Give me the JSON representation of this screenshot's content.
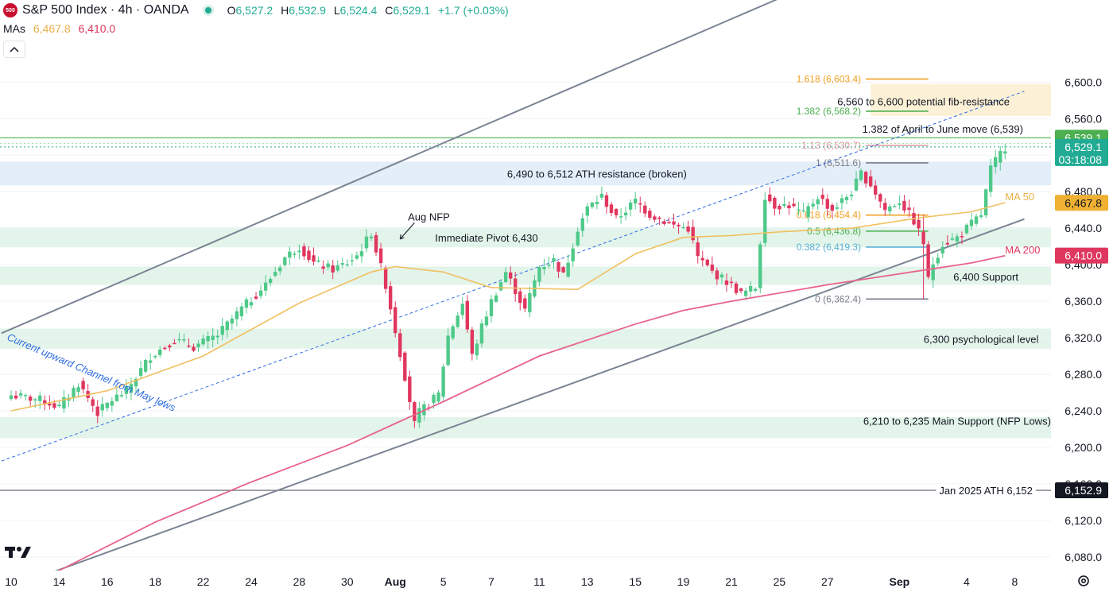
{
  "header": {
    "badge": "500",
    "title": "S&P 500 Index · 4h · OANDA",
    "o_label": "O",
    "o_value": "6,527.2",
    "h_label": "H",
    "h_value": "6,532.9",
    "l_label": "L",
    "l_value": "6,524.4",
    "c_label": "C",
    "c_value": "6,529.1",
    "change": "+1.7 (+0.03%)"
  },
  "mas": {
    "label": "MAs",
    "ma50_value": "6,467.8",
    "ma200_value": "6,410.0"
  },
  "colors": {
    "up": "#4fc98a",
    "down": "#e0375f",
    "ma50": "#f0c060",
    "ma200": "#e8638c",
    "channel": "#7b8494",
    "mid": "#2f6ee0",
    "zone_green": "#e3f4ea",
    "zone_blue": "#e4eef8",
    "zone_fib": "#fcf1d6"
  },
  "chart_data": {
    "type": "candlestick",
    "title": "S&P 500 Index · 4h · OANDA",
    "ylim": [
      6065,
      6690
    ],
    "y_ticks": [
      "6,600.0",
      "6,560.0",
      "6,520.0",
      "6,480.0",
      "6,440.0",
      "6,400.0",
      "6,360.0",
      "6,320.0",
      "6,280.0",
      "6,240.0",
      "6,200.0",
      "6,160.0",
      "6,120.0",
      "6,080.0"
    ],
    "y_tick_values": [
      6600,
      6560,
      6520,
      6480,
      6440,
      6400,
      6360,
      6320,
      6280,
      6240,
      6200,
      6160,
      6120,
      6080
    ],
    "x_ticks": [
      {
        "label": "10",
        "bar": 0
      },
      {
        "label": "14",
        "bar": 10
      },
      {
        "label": "16",
        "bar": 20
      },
      {
        "label": "18",
        "bar": 30
      },
      {
        "label": "22",
        "bar": 40
      },
      {
        "label": "24",
        "bar": 50
      },
      {
        "label": "28",
        "bar": 60
      },
      {
        "label": "30",
        "bar": 70
      },
      {
        "label": "Aug",
        "bar": 80,
        "bold": true
      },
      {
        "label": "5",
        "bar": 90
      },
      {
        "label": "7",
        "bar": 100
      },
      {
        "label": "11",
        "bar": 110
      },
      {
        "label": "13",
        "bar": 120
      },
      {
        "label": "15",
        "bar": 130
      },
      {
        "label": "19",
        "bar": 140
      },
      {
        "label": "21",
        "bar": 150
      },
      {
        "label": "25",
        "bar": 160
      },
      {
        "label": "27",
        "bar": 170
      },
      {
        "label": "Sep",
        "bar": 185,
        "bold": true
      },
      {
        "label": "4",
        "bar": 199
      },
      {
        "label": "8",
        "bar": 209
      }
    ],
    "close_anchors": [
      [
        0,
        6257
      ],
      [
        6,
        6252
      ],
      [
        10,
        6244
      ],
      [
        14,
        6270
      ],
      [
        18,
        6238
      ],
      [
        21,
        6252
      ],
      [
        24,
        6262
      ],
      [
        29,
        6300
      ],
      [
        34,
        6318
      ],
      [
        38,
        6310
      ],
      [
        43,
        6323
      ],
      [
        48,
        6352
      ],
      [
        53,
        6378
      ],
      [
        57,
        6408
      ],
      [
        60,
        6420
      ],
      [
        63,
        6402
      ],
      [
        67,
        6395
      ],
      [
        70,
        6402
      ],
      [
        72,
        6410
      ],
      [
        75,
        6435
      ],
      [
        78,
        6378
      ],
      [
        82,
        6278
      ],
      [
        84,
        6225
      ],
      [
        85,
        6238
      ],
      [
        89,
        6258
      ],
      [
        91,
        6322
      ],
      [
        94,
        6358
      ],
      [
        96,
        6300
      ],
      [
        98,
        6332
      ],
      [
        100,
        6360
      ],
      [
        103,
        6392
      ],
      [
        105,
        6372
      ],
      [
        107,
        6350
      ],
      [
        110,
        6398
      ],
      [
        113,
        6405
      ],
      [
        115,
        6388
      ],
      [
        118,
        6440
      ],
      [
        120,
        6462
      ],
      [
        123,
        6475
      ],
      [
        126,
        6450
      ],
      [
        130,
        6470
      ],
      [
        133,
        6455
      ],
      [
        138,
        6443
      ],
      [
        141,
        6440
      ],
      [
        143,
        6408
      ],
      [
        146,
        6392
      ],
      [
        150,
        6378
      ],
      [
        152,
        6368
      ],
      [
        155,
        6375
      ],
      [
        157,
        6476
      ],
      [
        159,
        6465
      ],
      [
        162,
        6465
      ],
      [
        165,
        6455
      ],
      [
        168,
        6475
      ],
      [
        171,
        6460
      ],
      [
        175,
        6480
      ],
      [
        177,
        6500
      ],
      [
        179,
        6488
      ],
      [
        182,
        6460
      ],
      [
        185,
        6470
      ],
      [
        188,
        6448
      ],
      [
        190,
        6424
      ],
      [
        191,
        6383
      ],
      [
        192,
        6402
      ],
      [
        194,
        6423
      ],
      [
        197,
        6430
      ],
      [
        200,
        6445
      ],
      [
        202,
        6455
      ],
      [
        204,
        6505
      ],
      [
        206,
        6522
      ],
      [
        207,
        6529
      ]
    ],
    "series": [
      {
        "name": "MA 50",
        "value": "6,467.8"
      },
      {
        "name": "MA 200",
        "value": "6,410.0"
      }
    ],
    "ma50_anchors": [
      [
        0,
        6240
      ],
      [
        20,
        6262
      ],
      [
        40,
        6300
      ],
      [
        60,
        6358
      ],
      [
        75,
        6392
      ],
      [
        80,
        6398
      ],
      [
        90,
        6392
      ],
      [
        100,
        6375
      ],
      [
        118,
        6373
      ],
      [
        130,
        6412
      ],
      [
        140,
        6430
      ],
      [
        150,
        6432
      ],
      [
        160,
        6436
      ],
      [
        175,
        6440
      ],
      [
        190,
        6452
      ],
      [
        200,
        6458
      ],
      [
        207,
        6468
      ]
    ],
    "ma200_anchors": [
      [
        10,
        6065
      ],
      [
        30,
        6118
      ],
      [
        50,
        6162
      ],
      [
        70,
        6202
      ],
      [
        80,
        6226
      ],
      [
        90,
        6250
      ],
      [
        110,
        6300
      ],
      [
        130,
        6335
      ],
      [
        140,
        6350
      ],
      [
        150,
        6360
      ],
      [
        170,
        6378
      ],
      [
        185,
        6390
      ],
      [
        200,
        6402
      ],
      [
        207,
        6410
      ]
    ],
    "price_labels": [
      {
        "text": "6,539.1",
        "value": 6539.1,
        "bg": "#4caf50",
        "fg": "#ffffff"
      },
      {
        "text": "6,529.1",
        "value": 6529.1,
        "bg": "#22ab94",
        "fg": "#ffffff",
        "sub": "03:18:08"
      },
      {
        "text": "6,467.8",
        "value": 6467.8,
        "bg": "#f0b132",
        "fg": "#131722"
      },
      {
        "text": "6,410.0",
        "value": 6410.0,
        "bg": "#e0375f",
        "fg": "#ffffff"
      },
      {
        "text": "6,152.9",
        "value": 6152.9,
        "bg": "#131722",
        "fg": "#ffffff"
      }
    ],
    "zones": [
      {
        "from": 6563,
        "to": 6598,
        "color": "#fcf1d6",
        "x0": "bar:179"
      },
      {
        "from": 6487,
        "to": 6513,
        "color": "#e4eef8"
      },
      {
        "from": 6419,
        "to": 6441,
        "color": "#e3f4ea"
      },
      {
        "from": 6378,
        "to": 6398,
        "color": "#e3f4ea"
      },
      {
        "from": 6308,
        "to": 6330,
        "color": "#e3f4ea"
      },
      {
        "from": 6210,
        "to": 6233,
        "color": "#e3f4ea"
      }
    ],
    "hlines": [
      {
        "value": 6539,
        "color": "#6bbf70",
        "style": "solid",
        "full": true
      },
      {
        "value": 6533,
        "color": "#9fd7a3",
        "style": "dotted",
        "full": true
      },
      {
        "value": 6529.1,
        "color": "#22ab94",
        "style": "dotted",
        "full": true
      },
      {
        "value": 6152.9,
        "color": "#787b86",
        "style": "solid",
        "full": true
      }
    ],
    "fib_levels": [
      {
        "label": "1.618 (6,603.4)",
        "value": 6603.4,
        "color": "#f0a020"
      },
      {
        "label": "1.382 (6,568.2)",
        "value": 6568.2,
        "color": "#4caf50"
      },
      {
        "label": "1.13 (6,530.7)",
        "value": 6530.7,
        "color": "#e09aa0"
      },
      {
        "label": "1 (6,511.6)",
        "value": 6511.6,
        "color": "#787b86"
      },
      {
        "label": "0.618 (6,454.4)",
        "value": 6454.4,
        "color": "#f0a020"
      },
      {
        "label": "0.5 (6,436.8)",
        "value": 6436.8,
        "color": "#4caf50"
      },
      {
        "label": "0.382 (6,419.3)",
        "value": 6419.3,
        "color": "#5aafd6"
      },
      {
        "label": "0 (6,362.4)",
        "value": 6362.4,
        "color": "#787b86"
      }
    ],
    "annotations": [
      {
        "text": "6,560 to 6,600 potential fib-resistance",
        "value": 6578
      },
      {
        "text": "1.382 of April to June move (6,539)",
        "value": 6548
      },
      {
        "text": "6,490 to 6,512 ATH resistance (broken)",
        "value": 6499
      },
      {
        "text": "Aug NFP",
        "value": 6452
      },
      {
        "text": "Immediate Pivot 6,430",
        "value": 6429
      },
      {
        "text": "MA 50",
        "value": 6474,
        "color": "#e8b04a"
      },
      {
        "text": "MA 200",
        "value": 6416,
        "color": "#e0375f"
      },
      {
        "text": "6,400 Support",
        "value": 6386
      },
      {
        "text": "6,300 psychological level",
        "value": 6318
      },
      {
        "text": "6,210 to 6,235 Main Support (NFP Lows)",
        "value": 6228
      },
      {
        "text": "Jan 2025 ATH 6,152",
        "value": 6152
      },
      {
        "text": "Current upward Channel from May lows",
        "value": 6350
      }
    ]
  }
}
